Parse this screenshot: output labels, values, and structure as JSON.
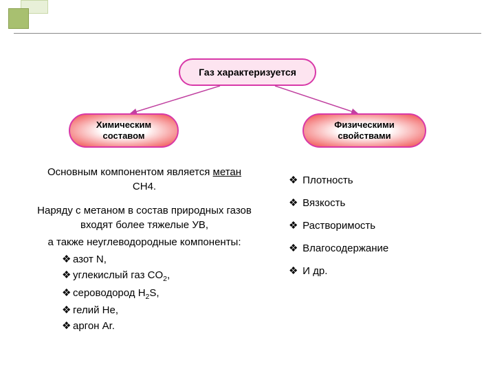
{
  "diagram": {
    "type": "flowchart",
    "background_color": "#ffffff",
    "decoration": {
      "sq1_color": "#a8c070",
      "sq2_color": "#e8f0d8",
      "line_color": "#888888"
    },
    "nodes": {
      "top": {
        "label": "Газ характеризуется",
        "fill": "#fde4f0",
        "border": "#d838a8",
        "text_color": "#000000"
      },
      "left": {
        "label_line1": "Химическим",
        "label_line2": "составом",
        "fill_center": "#ffffff",
        "fill_edge": "#f04848",
        "border": "#d838a8",
        "text_color": "#000000"
      },
      "right": {
        "label_line1": "Физическими",
        "label_line2": "свойствами",
        "fill_center": "#ffffff",
        "fill_edge": "#f04848",
        "border": "#d838a8",
        "text_color": "#000000"
      }
    },
    "arrow_color": "#c040a0"
  },
  "content": {
    "left": {
      "para1_pre": "Основным компонентом является ",
      "para1_underlined": "метан",
      "para1_post": " CH4.",
      "para2": "Наряду с метаном в состав природных газов входят более тяжелые УВ,",
      "para3": "а также неуглеводородные компоненты:",
      "bullets": [
        "азот N,",
        "углекислый газ CO₂,",
        "сероводород H₂S,",
        "гелий He,",
        "аргон Ar."
      ]
    },
    "right": {
      "bullets": [
        "Плотность",
        "Вязкость",
        "Растворимость",
        "Влагосодержание",
        "И др."
      ]
    },
    "bullet_glyph": "❖",
    "bullet_color": "#000000",
    "text_color": "#000000",
    "font_size": 15
  }
}
